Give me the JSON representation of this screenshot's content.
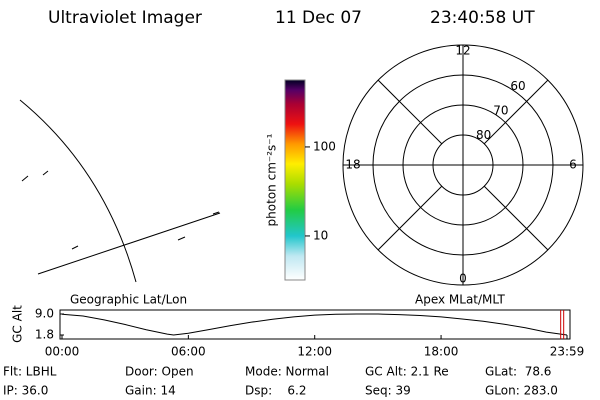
{
  "header": {
    "title": "Ultraviolet Imager",
    "date": "11 Dec 07",
    "time": "23:40:58 UT"
  },
  "colorbar": {
    "label": "photon cm⁻²s⁻¹",
    "clim": [
      3.2,
      565
    ],
    "ticks": [
      10,
      100
    ],
    "log": true
  },
  "polar": {
    "rlim": [
      90,
      50
    ],
    "lat_ticks": [
      60,
      70,
      80
    ],
    "mlt_ticks": [
      0,
      6,
      12,
      18
    ]
  },
  "chart_data": {
    "type": "line",
    "ylabel": "GC Alt",
    "left_label": "Geographic Lat/Lon",
    "right_label": "Apex MLat/MLT",
    "x": [
      0,
      1,
      2,
      3,
      4,
      5,
      5.3,
      6,
      7,
      8,
      9,
      10,
      11,
      12,
      13,
      14,
      15,
      16,
      17,
      18,
      19,
      20,
      21,
      22,
      23,
      23.98
    ],
    "values": [
      8.9,
      8.3,
      7.0,
      5.4,
      3.6,
      2.1,
      1.8,
      2.4,
      3.7,
      5.0,
      6.2,
      7.2,
      8.0,
      8.6,
      8.9,
      9.0,
      9.0,
      8.8,
      8.5,
      8.0,
      7.3,
      6.5,
      5.5,
      4.3,
      2.8,
      1.8
    ],
    "color": "#000000",
    "marker_x": 23.68,
    "marker_color": "#cc0000",
    "xlim": [
      0,
      23.98
    ],
    "ylim": [
      1.8,
      9.0
    ],
    "xticks": [
      {
        "value": 0,
        "label": "00:00"
      },
      {
        "value": 6,
        "label": "06:00"
      },
      {
        "value": 12,
        "label": "12:00"
      },
      {
        "value": 18,
        "label": "18:00"
      },
      {
        "value": 23.98,
        "label": "23:59"
      }
    ],
    "yticks": [
      {
        "value": 9.0,
        "label": "9.0"
      },
      {
        "value": 1.8,
        "label": "1.8"
      }
    ]
  },
  "info": [
    [
      "Flt: LBHL",
      "Door: Open",
      "Mode: Normal",
      "GC Alt: 2.1 Re",
      "GLat:  78.6"
    ],
    [
      "IP: 36.0",
      "Gain: 14",
      "Dsp:    6.2",
      "Seq: 39",
      "GLon: 283.0"
    ]
  ]
}
